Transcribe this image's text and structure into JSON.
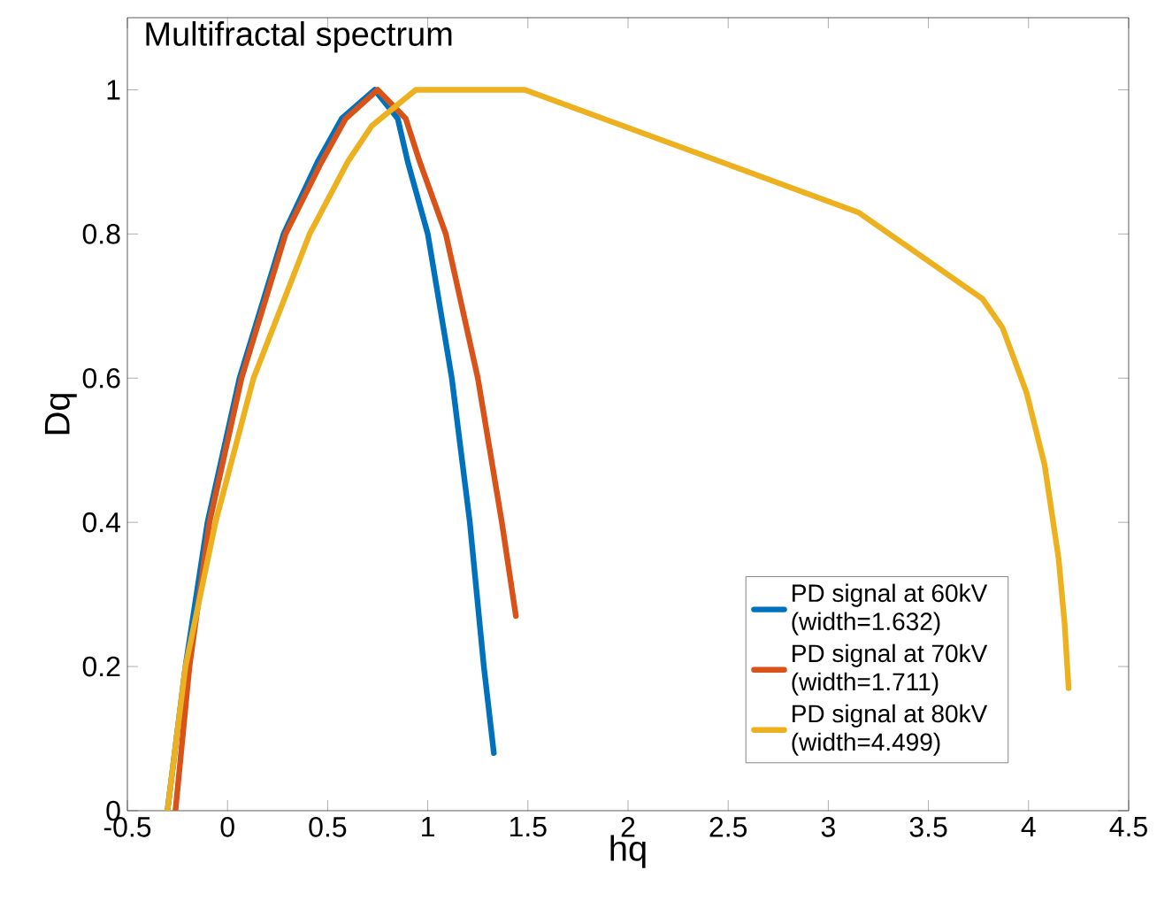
{
  "chart_data": {
    "type": "line",
    "title": "Multifractal spectrum",
    "xlabel": "hq",
    "ylabel": "Dq",
    "xlim": [
      -0.5,
      4.5
    ],
    "ylim": [
      0,
      1.1
    ],
    "xticks": [
      -0.5,
      0,
      0.5,
      1,
      1.5,
      2,
      2.5,
      3,
      3.5,
      4,
      4.5
    ],
    "yticks": [
      0,
      0.2,
      0.4,
      0.6,
      0.8,
      1
    ],
    "legend": "bottom right",
    "grid": false,
    "marker": "none",
    "line_style": "solid",
    "series": [
      {
        "name": "PD signal at 60kV (width=1.632)",
        "color": "#0072bd",
        "x": [
          -0.3,
          -0.21,
          -0.1,
          0.06,
          0.28,
          0.45,
          0.57,
          0.735,
          0.85,
          0.9,
          1.0,
          1.12,
          1.21,
          1.28,
          1.33
        ],
        "values": [
          0,
          0.2,
          0.4,
          0.6,
          0.8,
          0.9,
          0.96,
          1,
          0.96,
          0.9,
          0.8,
          0.6,
          0.4,
          0.2,
          0.08
        ]
      },
      {
        "name": "PD signal at 70kV (width=1.711)",
        "color": "#d95319",
        "x": [
          -0.26,
          -0.19,
          -0.09,
          0.07,
          0.29,
          0.47,
          0.59,
          0.75,
          0.89,
          0.96,
          1.09,
          1.25,
          1.37,
          1.44
        ],
        "values": [
          0,
          0.2,
          0.4,
          0.6,
          0.8,
          0.9,
          0.96,
          1,
          0.96,
          0.9,
          0.8,
          0.6,
          0.4,
          0.27
        ]
      },
      {
        "name": "PD signal at 80kV (width=4.499)",
        "color": "#edb120",
        "x": [
          -0.3,
          -0.21,
          -0.06,
          0.13,
          0.41,
          0.6,
          0.72,
          0.94,
          1.485,
          3.15,
          3.77,
          3.87,
          3.99,
          4.08,
          4.15,
          4.18,
          4.2
        ],
        "values": [
          0,
          0.2,
          0.4,
          0.6,
          0.8,
          0.9,
          0.95,
          1,
          1,
          0.83,
          0.71,
          0.67,
          0.58,
          0.48,
          0.35,
          0.26,
          0.17
        ]
      }
    ]
  }
}
